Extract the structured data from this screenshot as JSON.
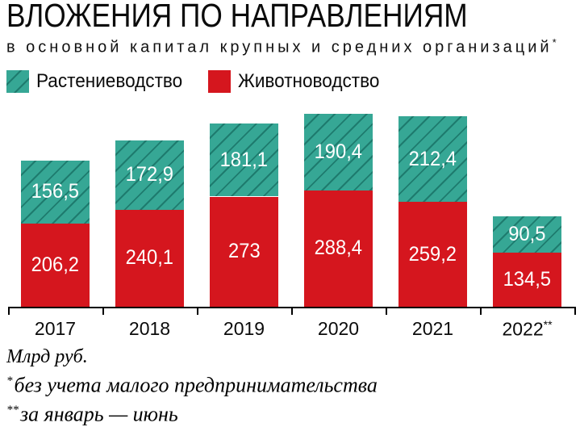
{
  "title": "ВЛОЖЕНИЯ ПО НАПРАВЛЕНИЯМ",
  "subtitle": "в основной капитал крупных и средних организаций",
  "subtitle_marker": "*",
  "colors": {
    "crop_teal": "#36a795",
    "crop_hatch_line": "#1e7b6e",
    "livestock_red": "#d5161e",
    "axis_black": "#000000",
    "value_label_white": "#ffffff"
  },
  "legend": {
    "items": [
      {
        "label": "Растениеводство",
        "color": "#36a795",
        "hatched": true
      },
      {
        "label": "Животноводство",
        "color": "#d5161e",
        "hatched": false
      }
    ]
  },
  "chart_data": {
    "type": "bar",
    "stacked": true,
    "grid": false,
    "legend_position": "top",
    "categories": [
      "2017",
      "2018",
      "2019",
      "2020",
      "2021",
      "2022"
    ],
    "category_suffixes": [
      "",
      "",
      "",
      "",
      "",
      "**"
    ],
    "series": [
      {
        "name": "Животноводство",
        "color": "#d5161e",
        "hatched": false,
        "values": [
          206.2,
          240.1,
          273,
          288.4,
          259.2,
          134.5
        ],
        "labels": [
          "206,2",
          "240,1",
          "273",
          "288,4",
          "259,2",
          "134,5"
        ]
      },
      {
        "name": "Растениеводство",
        "color": "#36a795",
        "hatched": true,
        "values": [
          156.5,
          172.9,
          181.1,
          190.4,
          212.4,
          90.5
        ],
        "labels": [
          "156,5",
          "172,9",
          "181,1",
          "190,4",
          "212,4",
          "90,5"
        ]
      }
    ],
    "unit": "Млрд руб.",
    "ylim": [
      0,
      500
    ],
    "xlabel": "",
    "ylabel": ""
  },
  "footnotes": [
    {
      "marker": "",
      "text": "Млрд руб."
    },
    {
      "marker": "*",
      "text": "без учета малого предпринимательства"
    },
    {
      "marker": "**",
      "text": "за январь — июнь"
    }
  ]
}
